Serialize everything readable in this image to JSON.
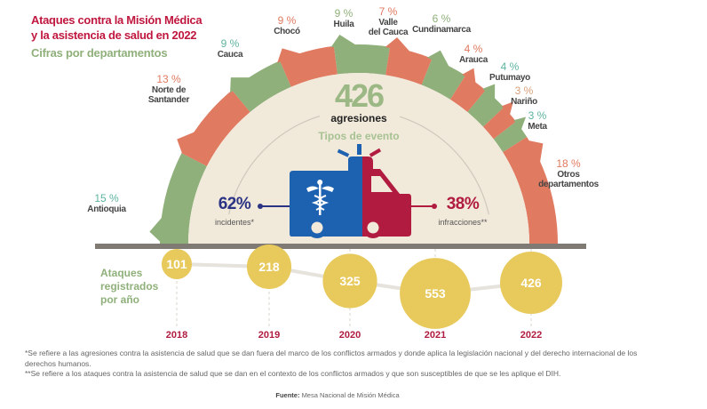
{
  "header": {
    "title_line1": "Ataques contra la Misión Médica",
    "title_line2": "y la asistencia de salud en 2022",
    "subtitle": "Cifras por departamentos"
  },
  "colors": {
    "green": "#8fb07a",
    "salmon": "#e07a60",
    "cream": "#f1e9da",
    "blue": "#1d62b0",
    "red": "#b01b3f",
    "navy": "#2a3384",
    "yellow": "#e8c95c",
    "bar": "#7f7a74"
  },
  "center": {
    "total": "426",
    "total_label": "agresiones",
    "types_label": "Tipos de evento",
    "incidents": {
      "value": "62%",
      "label": "incidentes*"
    },
    "infractions": {
      "value": "38%",
      "label": "infracciones**"
    },
    "icon": "ambulance-caduceus-icon"
  },
  "chart_data": [
    {
      "type": "pie",
      "shape": "half-donut",
      "title": "Cifras por departamentos",
      "categories": [
        "Antioquia",
        "Norte de Santander",
        "Cauca",
        "Chocó",
        "Huila",
        "Valle del Cauca",
        "Cundinamarca",
        "Arauca",
        "Putumayo",
        "Nariño",
        "Meta",
        "Otros departamentos"
      ],
      "values": [
        15,
        13,
        9,
        9,
        9,
        7,
        6,
        4,
        4,
        3,
        3,
        18
      ],
      "labels": [
        {
          "pct": "15 %",
          "name": [
            "Antioquia"
          ],
          "color": "#5db3a0",
          "seg": "green"
        },
        {
          "pct": "13 %",
          "name": [
            "Norte de",
            "Santander"
          ],
          "color": "#e07a60",
          "seg": "salmon"
        },
        {
          "pct": "9 %",
          "name": [
            "Cauca"
          ],
          "color": "#5db3a0",
          "seg": "green"
        },
        {
          "pct": "9 %",
          "name": [
            "Chocó"
          ],
          "color": "#e07a60",
          "seg": "salmon"
        },
        {
          "pct": "9 %",
          "name": [
            "Huila"
          ],
          "color": "#8fb07a",
          "seg": "green"
        },
        {
          "pct": "7 %",
          "name": [
            "Valle",
            "del Cauca"
          ],
          "color": "#e07a60",
          "seg": "salmon"
        },
        {
          "pct": "6 %",
          "name": [
            "Cundinamarca"
          ],
          "color": "#8fb07a",
          "seg": "green"
        },
        {
          "pct": "4 %",
          "name": [
            "Arauca"
          ],
          "color": "#e07a60",
          "seg": "salmon"
        },
        {
          "pct": "4 %",
          "name": [
            "Putumayo"
          ],
          "color": "#5db3a0",
          "seg": "green"
        },
        {
          "pct": "3 %",
          "name": [
            "Nariño"
          ],
          "color": "#d9a07a",
          "seg": "salmon"
        },
        {
          "pct": "3 %",
          "name": [
            "Meta"
          ],
          "color": "#5db3a0",
          "seg": "green"
        },
        {
          "pct": "18 %",
          "name": [
            "Otros",
            "departamentos"
          ],
          "color": "#e07a60",
          "seg": "salmon"
        }
      ]
    },
    {
      "type": "scatter",
      "shape": "bubble-line",
      "title": "Ataques registrados por año",
      "title_lines": [
        "Ataques",
        "registrados",
        "por año"
      ],
      "x": [
        "2018",
        "2019",
        "2020",
        "2021",
        "2022"
      ],
      "values": [
        101,
        218,
        325,
        553,
        426
      ]
    }
  ],
  "footnotes": [
    "*Se refiere a las agresiones contra la asistencia de salud que se dan fuera del marco de los conflictos armados y donde aplica la legislación nacional y del derecho internacional de los derechos humanos.",
    "**Se refiere a los ataques contra la asistencia de salud que se dan en el contexto de los conflictos armados y que son susceptibles de que se les aplique el DIH."
  ],
  "source": {
    "label": "Fuente:",
    "text": "Mesa Nacional de Misión Médica"
  }
}
